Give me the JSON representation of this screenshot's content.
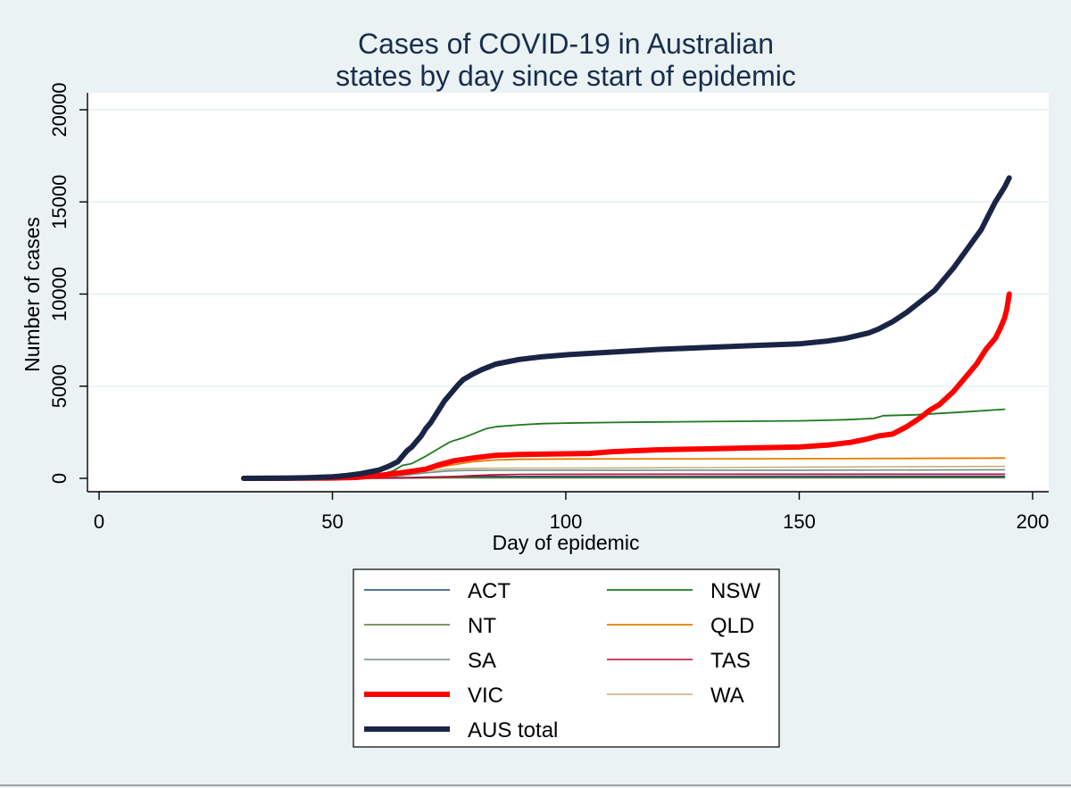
{
  "chart_data": {
    "type": "line",
    "title": [
      "Cases of COVID-19 in Australian",
      "states by day since start of epidemic"
    ],
    "xlabel": "Day of epidemic",
    "ylabel": "Number of cases",
    "xlim": [
      0,
      200
    ],
    "ylim": [
      0,
      20000
    ],
    "xticks": [
      0,
      50,
      100,
      150,
      200
    ],
    "yticks": [
      0,
      5000,
      10000,
      15000,
      20000
    ],
    "grid": "horizontal",
    "legend_position": "bottom",
    "series": [
      {
        "name": "ACT",
        "color": "#1a476f",
        "width": 1.6,
        "points": [
          [
            31,
            0
          ],
          [
            55,
            5
          ],
          [
            65,
            40
          ],
          [
            75,
            90
          ],
          [
            85,
            105
          ],
          [
            100,
            107
          ],
          [
            150,
            113
          ],
          [
            170,
            113
          ],
          [
            194,
            113
          ]
        ]
      },
      {
        "name": "NSW",
        "color": "#1e7a1e",
        "width": 1.8,
        "points": [
          [
            31,
            0
          ],
          [
            40,
            3
          ],
          [
            50,
            30
          ],
          [
            55,
            80
          ],
          [
            60,
            200
          ],
          [
            63,
            400
          ],
          [
            65,
            700
          ],
          [
            67,
            800
          ],
          [
            70,
            1200
          ],
          [
            73,
            1650
          ],
          [
            75,
            1950
          ],
          [
            76,
            2050
          ],
          [
            78,
            2200
          ],
          [
            80,
            2400
          ],
          [
            83,
            2700
          ],
          [
            85,
            2800
          ],
          [
            90,
            2900
          ],
          [
            95,
            2970
          ],
          [
            100,
            3000
          ],
          [
            110,
            3030
          ],
          [
            120,
            3060
          ],
          [
            130,
            3080
          ],
          [
            140,
            3100
          ],
          [
            150,
            3120
          ],
          [
            160,
            3180
          ],
          [
            166,
            3250
          ],
          [
            168,
            3400
          ],
          [
            175,
            3450
          ],
          [
            185,
            3600
          ],
          [
            194,
            3750
          ]
        ]
      },
      {
        "name": "NT",
        "color": "#55752f",
        "width": 1.6,
        "points": [
          [
            31,
            0
          ],
          [
            60,
            5
          ],
          [
            70,
            20
          ],
          [
            80,
            28
          ],
          [
            100,
            29
          ],
          [
            150,
            31
          ],
          [
            194,
            33
          ]
        ]
      },
      {
        "name": "QLD",
        "color": "#e37e00",
        "width": 1.8,
        "points": [
          [
            31,
            0
          ],
          [
            50,
            5
          ],
          [
            55,
            20
          ],
          [
            60,
            80
          ],
          [
            65,
            200
          ],
          [
            70,
            450
          ],
          [
            75,
            700
          ],
          [
            80,
            900
          ],
          [
            85,
            1000
          ],
          [
            90,
            1030
          ],
          [
            100,
            1050
          ],
          [
            130,
            1060
          ],
          [
            160,
            1070
          ],
          [
            194,
            1100
          ]
        ]
      },
      {
        "name": "SA",
        "color": "#6e8e84",
        "width": 1.6,
        "points": [
          [
            31,
            0
          ],
          [
            55,
            5
          ],
          [
            60,
            30
          ],
          [
            65,
            150
          ],
          [
            70,
            300
          ],
          [
            75,
            400
          ],
          [
            80,
            430
          ],
          [
            85,
            438
          ],
          [
            100,
            440
          ],
          [
            150,
            443
          ],
          [
            194,
            466
          ]
        ]
      },
      {
        "name": "TAS",
        "color": "#c10534",
        "width": 1.6,
        "points": [
          [
            31,
            0
          ],
          [
            55,
            3
          ],
          [
            65,
            20
          ],
          [
            70,
            50
          ],
          [
            75,
            80
          ],
          [
            80,
            150
          ],
          [
            85,
            200
          ],
          [
            90,
            220
          ],
          [
            100,
            225
          ],
          [
            150,
            228
          ],
          [
            194,
            230
          ]
        ]
      },
      {
        "name": "VIC",
        "color": "#ff0000",
        "width": 6,
        "points": [
          [
            31,
            0
          ],
          [
            40,
            5
          ],
          [
            50,
            20
          ],
          [
            55,
            50
          ],
          [
            60,
            150
          ],
          [
            63,
            250
          ],
          [
            66,
            350
          ],
          [
            70,
            500
          ],
          [
            73,
            750
          ],
          [
            76,
            950
          ],
          [
            80,
            1100
          ],
          [
            85,
            1250
          ],
          [
            90,
            1300
          ],
          [
            100,
            1330
          ],
          [
            105,
            1350
          ],
          [
            110,
            1450
          ],
          [
            115,
            1500
          ],
          [
            120,
            1550
          ],
          [
            130,
            1600
          ],
          [
            140,
            1650
          ],
          [
            150,
            1700
          ],
          [
            156,
            1800
          ],
          [
            161,
            1950
          ],
          [
            164,
            2100
          ],
          [
            167,
            2300
          ],
          [
            170,
            2400
          ],
          [
            173,
            2800
          ],
          [
            176,
            3300
          ],
          [
            178,
            3700
          ],
          [
            180,
            4000
          ],
          [
            183,
            4700
          ],
          [
            185,
            5300
          ],
          [
            188,
            6200
          ],
          [
            190,
            7000
          ],
          [
            192,
            7600
          ],
          [
            193,
            8100
          ],
          [
            194,
            8700
          ],
          [
            194.5,
            9200
          ],
          [
            195,
            10000
          ]
        ]
      },
      {
        "name": "WA",
        "color": "#c4b07d",
        "width": 1.6,
        "points": [
          [
            31,
            0
          ],
          [
            55,
            5
          ],
          [
            60,
            50
          ],
          [
            65,
            200
          ],
          [
            70,
            400
          ],
          [
            75,
            500
          ],
          [
            80,
            540
          ],
          [
            90,
            550
          ],
          [
            100,
            555
          ],
          [
            130,
            580
          ],
          [
            150,
            610
          ],
          [
            170,
            630
          ],
          [
            194,
            650
          ]
        ]
      },
      {
        "name": "AUS total",
        "color": "#1a2444",
        "width": 6,
        "points": [
          [
            31,
            0
          ],
          [
            40,
            10
          ],
          [
            45,
            40
          ],
          [
            50,
            80
          ],
          [
            53,
            150
          ],
          [
            56,
            250
          ],
          [
            60,
            450
          ],
          [
            62,
            650
          ],
          [
            64,
            900
          ],
          [
            65,
            1200
          ],
          [
            66,
            1500
          ],
          [
            67,
            1700
          ],
          [
            68,
            2000
          ],
          [
            69,
            2300
          ],
          [
            70,
            2700
          ],
          [
            71,
            3000
          ],
          [
            72,
            3400
          ],
          [
            73,
            3800
          ],
          [
            74,
            4200
          ],
          [
            75,
            4500
          ],
          [
            76,
            4800
          ],
          [
            77,
            5100
          ],
          [
            78,
            5350
          ],
          [
            80,
            5650
          ],
          [
            82,
            5900
          ],
          [
            85,
            6200
          ],
          [
            90,
            6450
          ],
          [
            95,
            6600
          ],
          [
            100,
            6700
          ],
          [
            110,
            6850
          ],
          [
            120,
            7000
          ],
          [
            130,
            7100
          ],
          [
            140,
            7200
          ],
          [
            150,
            7300
          ],
          [
            156,
            7450
          ],
          [
            160,
            7600
          ],
          [
            165,
            7900
          ],
          [
            167,
            8100
          ],
          [
            170,
            8500
          ],
          [
            173,
            9000
          ],
          [
            176,
            9600
          ],
          [
            179,
            10200
          ],
          [
            181,
            10800
          ],
          [
            183,
            11400
          ],
          [
            185,
            12100
          ],
          [
            187,
            12800
          ],
          [
            189,
            13500
          ],
          [
            190,
            14000
          ],
          [
            191,
            14500
          ],
          [
            192,
            15000
          ],
          [
            193,
            15400
          ],
          [
            194,
            15800
          ],
          [
            195,
            16300
          ]
        ]
      }
    ]
  }
}
